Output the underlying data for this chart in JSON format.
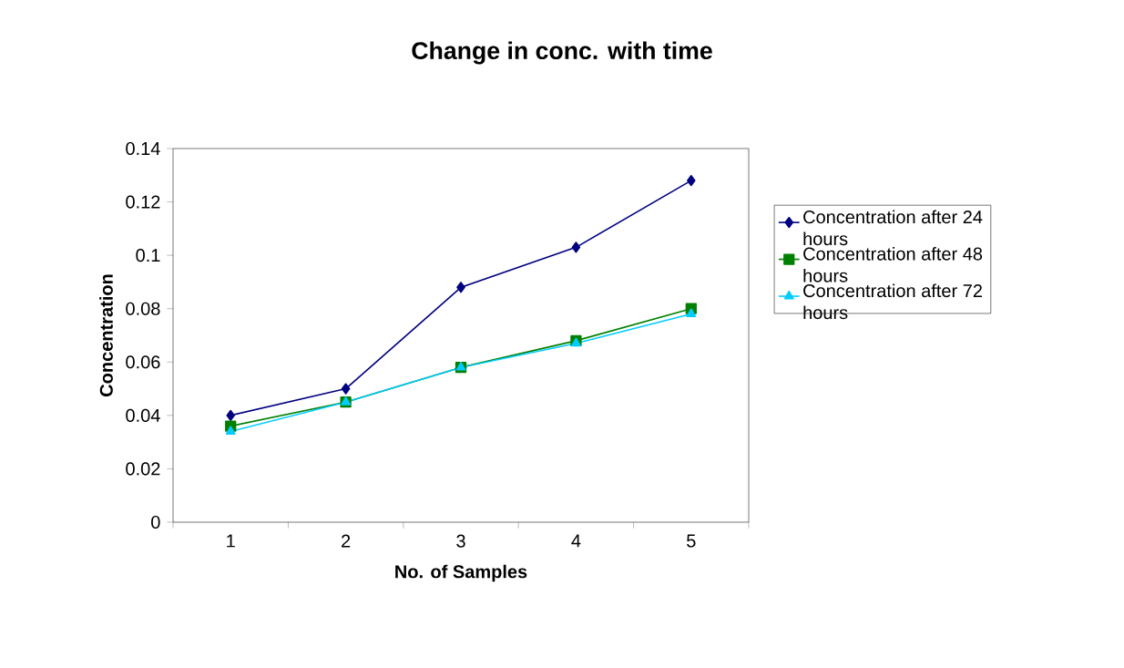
{
  "chart_data": {
    "type": "line",
    "title": "Change in conc. with time",
    "xlabel": "No. of Samples",
    "ylabel": "Concentration",
    "categories": [
      "1",
      "2",
      "3",
      "4",
      "5"
    ],
    "series": [
      {
        "name": "Concentration after 24 hours",
        "color": "#000080",
        "marker": "diamond",
        "values": [
          0.04,
          0.05,
          0.088,
          0.103,
          0.128
        ]
      },
      {
        "name": "Concentration after 48 hours",
        "color": "#008000",
        "marker": "square",
        "values": [
          0.036,
          0.045,
          0.058,
          0.068,
          0.08
        ]
      },
      {
        "name": "Concentration after 72 hours",
        "color": "#00ccff",
        "marker": "triangle",
        "values": [
          0.034,
          0.045,
          0.058,
          0.067,
          0.078
        ]
      }
    ],
    "ylim": [
      0,
      0.14
    ],
    "yticks": [
      0,
      0.02,
      0.04,
      0.06,
      0.08,
      0.1,
      0.12,
      0.14
    ],
    "grid": false,
    "legend": "right",
    "line_style": "solid"
  }
}
